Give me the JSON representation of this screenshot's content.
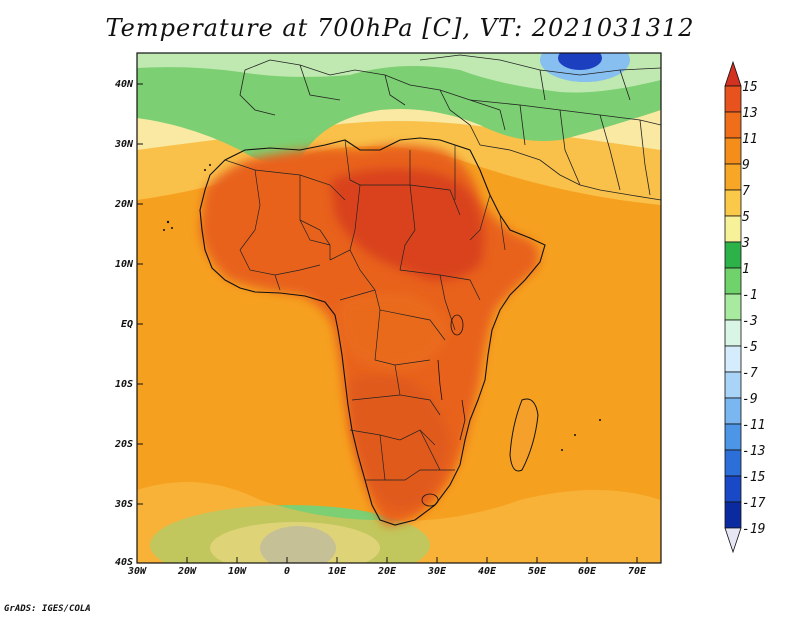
{
  "title": "Temperature at 700hPa [C], VT: 2021031312",
  "footer": "GrADS: IGES/COLA",
  "y_axis": [
    "40N",
    "30N",
    "20N",
    "10N",
    "EQ",
    "10S",
    "20S",
    "30S",
    "40S"
  ],
  "x_axis": [
    "30W",
    "20W",
    "10W",
    "0",
    "10E",
    "20E",
    "30E",
    "40E",
    "50E",
    "60E",
    "70E"
  ],
  "colorbar": {
    "labels": [
      "15",
      "13",
      "11",
      "9",
      "7",
      "5",
      "3",
      "1",
      "-1",
      "-3",
      "-5",
      "-7",
      "-9",
      "-11",
      "-13",
      "-15",
      "-17",
      "-19"
    ],
    "colors": [
      "#d2321f",
      "#e8521f",
      "#f06d1a",
      "#f58d1a",
      "#f8a626",
      "#fbc94a",
      "#f7f29a",
      "#2db24a",
      "#6fd26a",
      "#a8eaa0",
      "#d8f5e6",
      "#d4ecfb",
      "#a9d4f7",
      "#7ab7f1",
      "#4d95e6",
      "#2d6fd8",
      "#1949c6",
      "#0c2aa0",
      "#061779"
    ]
  },
  "map": {
    "region": "Africa",
    "colors": {
      "ocean_warm": "#f6a020",
      "ocean_mid": "#f9c14a",
      "pale": "#f9e9a2",
      "land_hot": "#e45a1e",
      "land_hotter": "#d9421b",
      "green": "#7ccf72",
      "light_green": "#bfe9b0",
      "blue": "#86bff0",
      "deep_blue": "#1c3fbf"
    }
  }
}
